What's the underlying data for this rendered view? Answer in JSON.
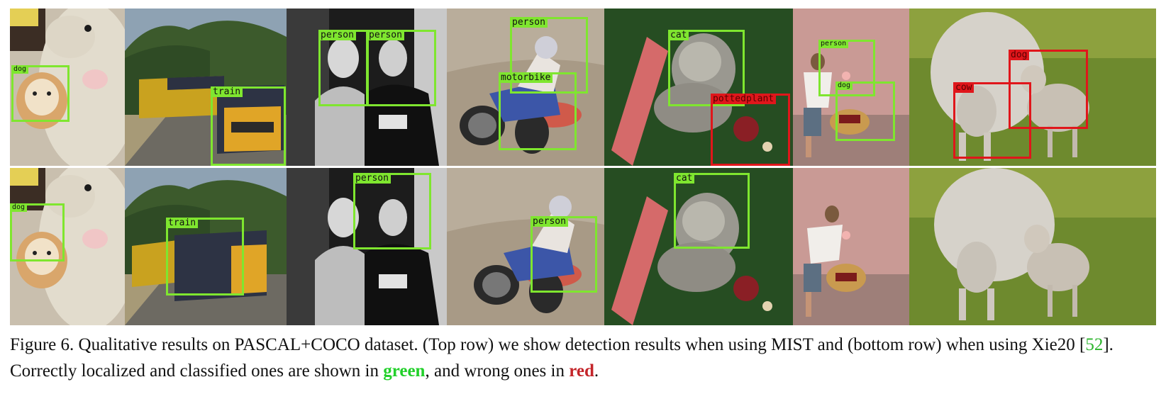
{
  "colors": {
    "correct": "#7fe62f",
    "wrong": "#e0161b"
  },
  "rows": {
    "top": {
      "labels": {
        "p1_dog": "dog",
        "p2_train": "train",
        "p3_person_a": "person",
        "p3_person_b": "person",
        "p4_person": "person",
        "p4_motorbike": "motorbike",
        "p5_cat": "cat",
        "p5_pottedplant": "pottedplant",
        "p6_person": "person",
        "p6_dog": "dog",
        "p7_dog": "dog",
        "p7_cow": "cow"
      }
    },
    "bottom": {
      "labels": {
        "p1_dog": "dog",
        "p2_train": "train",
        "p3_person": "person",
        "p4_person": "person",
        "p5_cat": "cat"
      }
    }
  },
  "caption": {
    "prefix": "Figure 6.  Qualitative results on PASCAL+COCO dataset. (Top row) we show detection results when using MIST and (bottom row) when using Xie20 [",
    "cite": "52",
    "middle": "]. Correctly localized and classified ones are shown in ",
    "green_word": "green",
    "between": ", and wrong ones in ",
    "red_word": "red",
    "suffix": "."
  }
}
